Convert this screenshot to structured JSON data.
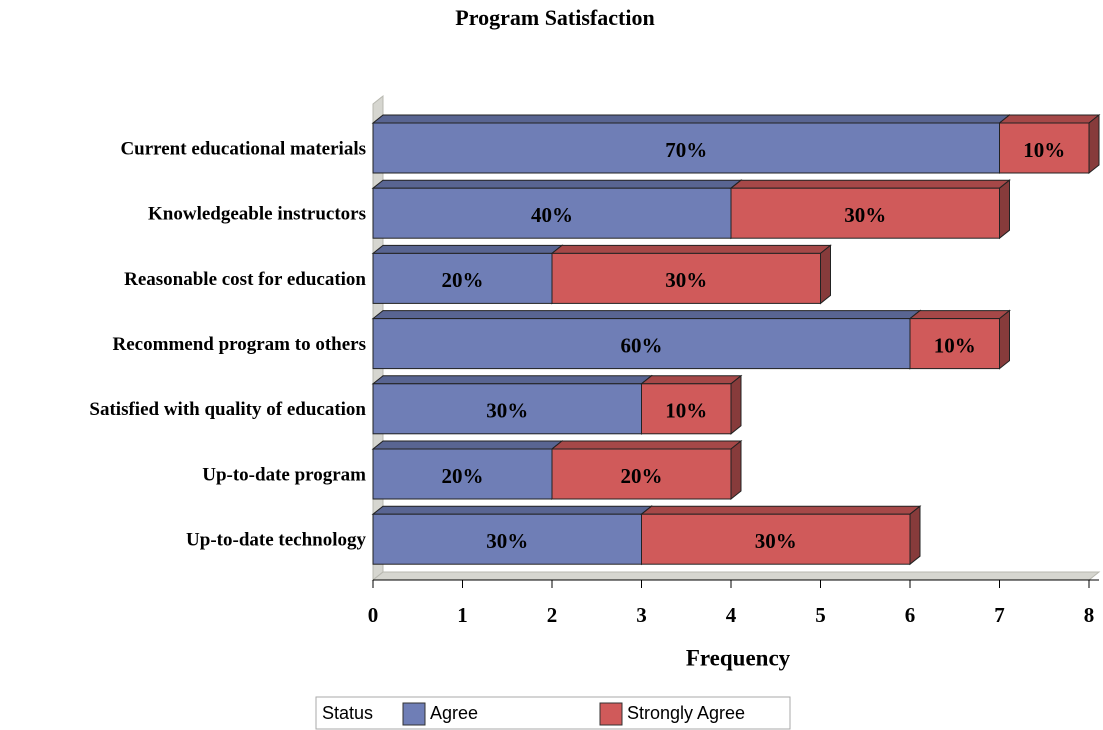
{
  "chart_data": {
    "type": "bar",
    "orientation": "horizontal",
    "stacked": true,
    "title": "Program Satisfaction",
    "xlabel": "Frequency",
    "categories": [
      "Current educational materials",
      "Knowledgeable instructors",
      "Reasonable cost for education",
      "Recommend program to others",
      "Satisfied with quality of education",
      "Up-to-date program",
      "Up-to-date technology"
    ],
    "series": [
      {
        "name": "Agree",
        "color": "#6f7eb6",
        "values": [
          7,
          4,
          2,
          6,
          3,
          2,
          3
        ],
        "value_labels": [
          "70%",
          "40%",
          "20%",
          "60%",
          "30%",
          "20%",
          "30%"
        ]
      },
      {
        "name": "Strongly Agree",
        "color": "#d05a5a",
        "values": [
          1,
          3,
          3,
          1,
          1,
          2,
          3
        ],
        "value_labels": [
          "10%",
          "30%",
          "30%",
          "10%",
          "10%",
          "20%",
          "30%"
        ]
      }
    ],
    "xlim": [
      0,
      8
    ],
    "xticks": [
      0,
      1,
      2,
      3,
      4,
      5,
      6,
      7,
      8
    ],
    "legend_title": "Status",
    "legend": "bottom"
  }
}
